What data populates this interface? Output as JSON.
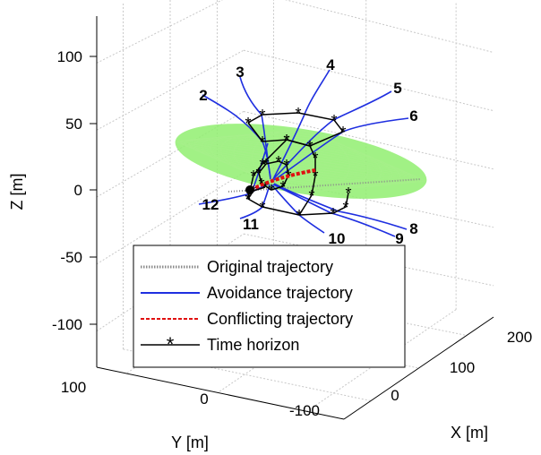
{
  "chart_data": {
    "type": "line",
    "projection": "3d",
    "axes": {
      "z": {
        "label": "Z [m]",
        "ticks": [
          {
            "value": 100,
            "label": "100"
          },
          {
            "value": 50,
            "label": "50"
          },
          {
            "value": 0,
            "label": "0"
          },
          {
            "value": -50,
            "label": "-50"
          },
          {
            "value": -100,
            "label": "-100"
          }
        ]
      },
      "y": {
        "label": "Y [m]",
        "ticks": [
          {
            "value": 100,
            "label": "100"
          },
          {
            "value": 0,
            "label": "0"
          },
          {
            "value": -100,
            "label": "-100"
          }
        ]
      },
      "x": {
        "label": "X [m]",
        "ticks": [
          {
            "value": 0,
            "label": "0"
          },
          {
            "value": 100,
            "label": "100"
          },
          {
            "value": 200,
            "label": "200"
          }
        ]
      }
    },
    "grid": true,
    "trajectory_labels": [
      "2",
      "3",
      "4",
      "5",
      "6",
      "8",
      "9",
      "10",
      "11",
      "12"
    ],
    "legend": {
      "placement": "bottom-center",
      "entries": [
        {
          "label": "Original trajectory",
          "color": "#8c8c8c",
          "style": "dotted"
        },
        {
          "label": "Avoidance trajectory",
          "color": "#1f2fe0",
          "style": "solid"
        },
        {
          "label": "Conflicting trajectory",
          "color": "#e01010",
          "style": "dashed"
        },
        {
          "label": "Time horizon",
          "color": "#000000",
          "style": "solid-star"
        }
      ]
    },
    "colors": {
      "ellipsoid": "#90ee70",
      "avoidance": "#1f2fe0",
      "conflicting": "#e01010",
      "horizon": "#000000",
      "original": "#8c8c8c"
    }
  }
}
